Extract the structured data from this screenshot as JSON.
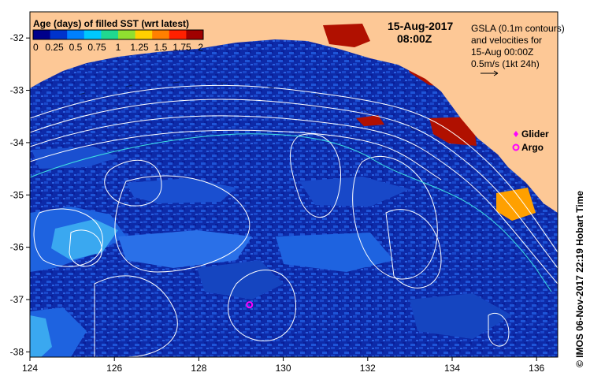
{
  "colorbar": {
    "title": "Age (days) of filled SST (wrt latest)",
    "labels": [
      "0",
      "0.25",
      "0.5",
      "0.75",
      "1",
      "1.25",
      "1.5",
      "1.75",
      "2"
    ],
    "colors": [
      "#00008b",
      "#0033cc",
      "#0080ff",
      "#00c8ff",
      "#20d890",
      "#90e030",
      "#ffd000",
      "#ff8000",
      "#ff2000",
      "#a00000"
    ]
  },
  "date": "15-Aug-2017",
  "time": "08:00Z",
  "gsla_note": [
    "GSLA (0.1m contours)",
    "and velocities for",
    "15-Aug 00:00Z",
    "0.5m/s (1kt 24h)"
  ],
  "legend": {
    "glider": "Glider",
    "argo": "Argo",
    "glider_color": "#ff00ff",
    "argo_color": "#ff00ff"
  },
  "credit": "© IMOS 06-Nov-2017 22:19 Hobart Time",
  "axes": {
    "x_ticks": [
      "124",
      "126",
      "128",
      "130",
      "132",
      "134",
      "136"
    ],
    "y_ticks": [
      "-32",
      "-33",
      "-34",
      "-35",
      "-36",
      "-37",
      "-38"
    ]
  },
  "markers": {
    "argo_float": {
      "lon": 129.2,
      "lat": -37.1
    }
  },
  "colors": {
    "land": "#fdc896",
    "ocean_deep": "#0a1f99",
    "ocean_mid": "#1e55d8",
    "ocean_light": "#3aa8f0",
    "old_data": "#b01000",
    "contour": "#ffffff",
    "track": "#40e0e0"
  }
}
